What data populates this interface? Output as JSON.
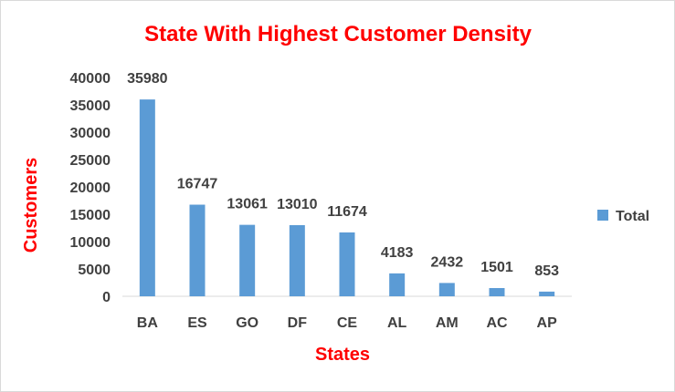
{
  "chart_data": {
    "type": "bar",
    "title": "State With Highest Customer Density",
    "xlabel": "States",
    "ylabel": "Customers",
    "categories": [
      "BA",
      "ES",
      "GO",
      "DF",
      "CE",
      "AL",
      "AM",
      "AC",
      "AP"
    ],
    "series": [
      {
        "name": "Total",
        "values": [
          35980,
          16747,
          13061,
          13010,
          11674,
          4183,
          2432,
          1501,
          853
        ]
      }
    ],
    "ylim": [
      0,
      40000
    ],
    "yticks": [
      0,
      5000,
      10000,
      15000,
      20000,
      25000,
      30000,
      35000,
      40000
    ],
    "data_labels": true,
    "grid": false,
    "legend": "right",
    "colors": {
      "bar": "#5b9bd5",
      "title": "#ff0000",
      "axis_title": "#ff0000",
      "text": "#404040",
      "axis_line": "#d9d9d9"
    }
  }
}
